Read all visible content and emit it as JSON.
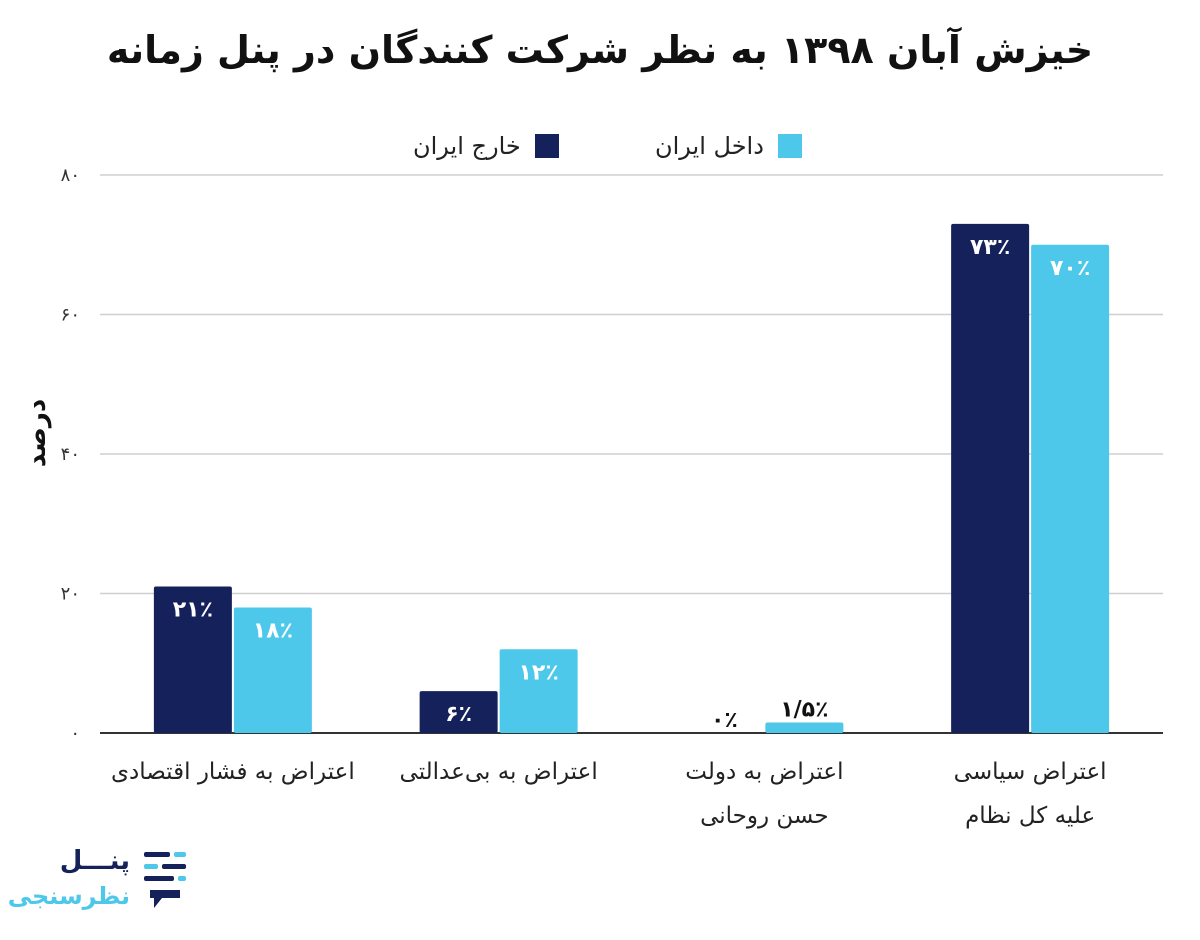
{
  "chart_data": {
    "type": "bar",
    "title": "خیزش آبان ۱۳۹۸ به نظر شرکت کنندگان در پنل زمانه",
    "ylabel": "درصد",
    "ylim": [
      0,
      80
    ],
    "yticks": [
      0,
      20,
      40,
      60,
      80
    ],
    "ytick_labels": [
      "۰",
      "۲۰",
      "۴۰",
      "۶۰",
      "۸۰"
    ],
    "grid": true,
    "legend_position": "top",
    "categories": [
      [
        "اعتراض به فشار اقتصادی"
      ],
      [
        "اعتراض به بی‌عدالتی"
      ],
      [
        "اعتراض به دولت",
        "حسن روحانی"
      ],
      [
        "اعتراض سیاسی",
        "علیه کل نظام"
      ]
    ],
    "series": [
      {
        "name": "خارج ایران",
        "color": "#14215a",
        "values": [
          21,
          6,
          0,
          73
        ],
        "labels": [
          "۲۱٪",
          "۶٪",
          "۰٪",
          "۷۳٪"
        ]
      },
      {
        "name": "داخل ایران",
        "color": "#4ec8ea",
        "values": [
          18,
          12,
          1.5,
          70
        ],
        "labels": [
          "۱۸٪",
          "۱۲٪",
          "۱/۵٪",
          "۷۰٪"
        ]
      }
    ]
  },
  "logo": {
    "line1": "پنـــل",
    "line2": "نظرسنجی"
  }
}
